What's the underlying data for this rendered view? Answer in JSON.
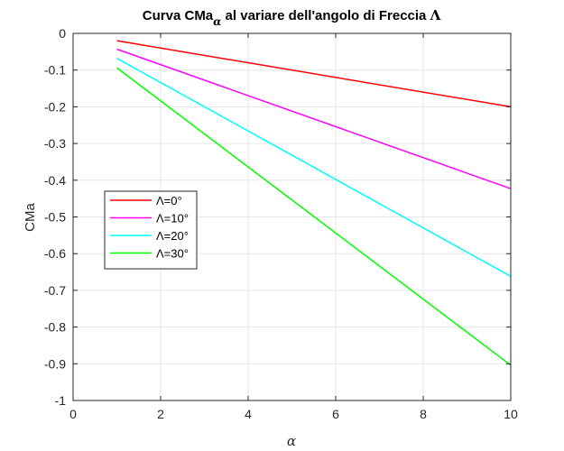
{
  "chart_data": {
    "type": "line",
    "title_main": "Curva CMa",
    "title_sub": "α",
    "title_rest": " al variare dell'angolo di Freccia ",
    "title_symbol": "Λ",
    "xlabel": "α",
    "ylabel": "CMa",
    "xlim": [
      0,
      10
    ],
    "ylim": [
      -1,
      0
    ],
    "xticks": [
      0,
      2,
      4,
      6,
      8,
      10
    ],
    "yticks": [
      0,
      -0.1,
      -0.2,
      -0.3,
      -0.4,
      -0.5,
      -0.6,
      -0.7,
      -0.8,
      -0.9,
      -1
    ],
    "xtick_labels": [
      "0",
      "2",
      "4",
      "6",
      "8",
      "10"
    ],
    "ytick_labels": [
      "0",
      "-0.1",
      "-0.2",
      "-0.3",
      "-0.4",
      "-0.5",
      "-0.6",
      "-0.7",
      "-0.8",
      "-0.9",
      "-1"
    ],
    "grid": true,
    "legend_position": "middle-left",
    "series": [
      {
        "name": "Λ=0°",
        "color": "#ff0000",
        "x": [
          1,
          10
        ],
        "y": [
          -0.02,
          -0.2
        ]
      },
      {
        "name": "Λ=10°",
        "color": "#ff00ff",
        "x": [
          1,
          10
        ],
        "y": [
          -0.043,
          -0.423
        ]
      },
      {
        "name": "Λ=20°",
        "color": "#00ffff",
        "x": [
          1,
          10
        ],
        "y": [
          -0.068,
          -0.662
        ]
      },
      {
        "name": "Λ=30°",
        "color": "#00ff00",
        "x": [
          1,
          10
        ],
        "y": [
          -0.094,
          -0.904
        ]
      }
    ]
  }
}
